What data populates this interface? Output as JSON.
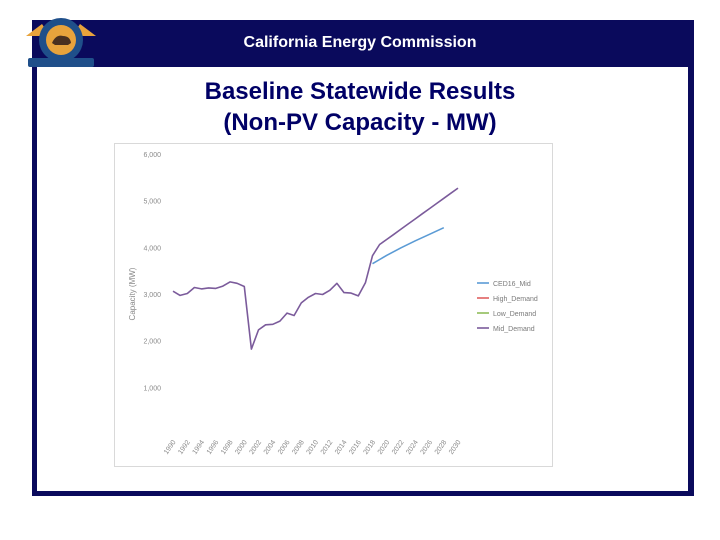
{
  "header": {
    "organization": "California Energy Commission"
  },
  "slide": {
    "title_line1": "Baseline Statewide Results",
    "title_line2": "(Non-PV Capacity - MW)"
  },
  "seal": {
    "top_text": "STATE OF CALIFORNIA",
    "bottom_text": "ENERGY COMMISSION"
  },
  "colors": {
    "frame": "#0a0a5c",
    "title": "#000066",
    "ced": "#5b9bd5",
    "high": "#e06060",
    "low": "#8fbc5a",
    "mid": "#7b5b9b"
  },
  "chart_data": {
    "type": "line",
    "title": "",
    "xlabel": "",
    "ylabel": "Capacity (MW)",
    "ylim": [
      0,
      6000
    ],
    "y_ticks": [
      "1,000",
      "2,000",
      "3,000",
      "4,000",
      "5,000",
      "6,000"
    ],
    "x_ticks": [
      "1990",
      "1992",
      "1994",
      "1996",
      "1998",
      "2000",
      "2002",
      "2004",
      "2006",
      "2008",
      "2010",
      "2012",
      "2014",
      "2016",
      "2018",
      "2020",
      "2022",
      "2024",
      "2026",
      "2028",
      "2030"
    ],
    "legend_position": "right",
    "series": [
      {
        "name": "CED16_Mid",
        "color": "#5b9bd5",
        "x": [
          2018,
          2020,
          2022,
          2024,
          2026,
          2028
        ],
        "y": [
          3650,
          3830,
          3990,
          4140,
          4280,
          4420
        ]
      },
      {
        "name": "High_Demand",
        "color": "#e06060",
        "x": [],
        "y": []
      },
      {
        "name": "Low_Demand",
        "color": "#8fbc5a",
        "x": [],
        "y": []
      },
      {
        "name": "Mid_Demand",
        "color": "#7b5b9b",
        "x": [
          1990,
          1991,
          1992,
          1993,
          1994,
          1995,
          1996,
          1997,
          1998,
          1999,
          2000,
          2001,
          2002,
          2003,
          2004,
          2005,
          2006,
          2007,
          2008,
          2009,
          2010,
          2011,
          2012,
          2013,
          2014,
          2015,
          2016,
          2017,
          2018,
          2019,
          2020,
          2021,
          2022,
          2023,
          2024,
          2025,
          2026,
          2027,
          2028,
          2029,
          2030
        ],
        "y": [
          3060,
          2970,
          3010,
          3140,
          3110,
          3130,
          3120,
          3170,
          3260,
          3230,
          3160,
          1820,
          2230,
          2340,
          2350,
          2420,
          2590,
          2540,
          2810,
          2930,
          3010,
          2990,
          3080,
          3230,
          3030,
          3020,
          2960,
          3240,
          3820,
          4060,
          4170,
          4280,
          4390,
          4500,
          4610,
          4720,
          4830,
          4940,
          5050,
          5160,
          5270
        ]
      }
    ]
  }
}
